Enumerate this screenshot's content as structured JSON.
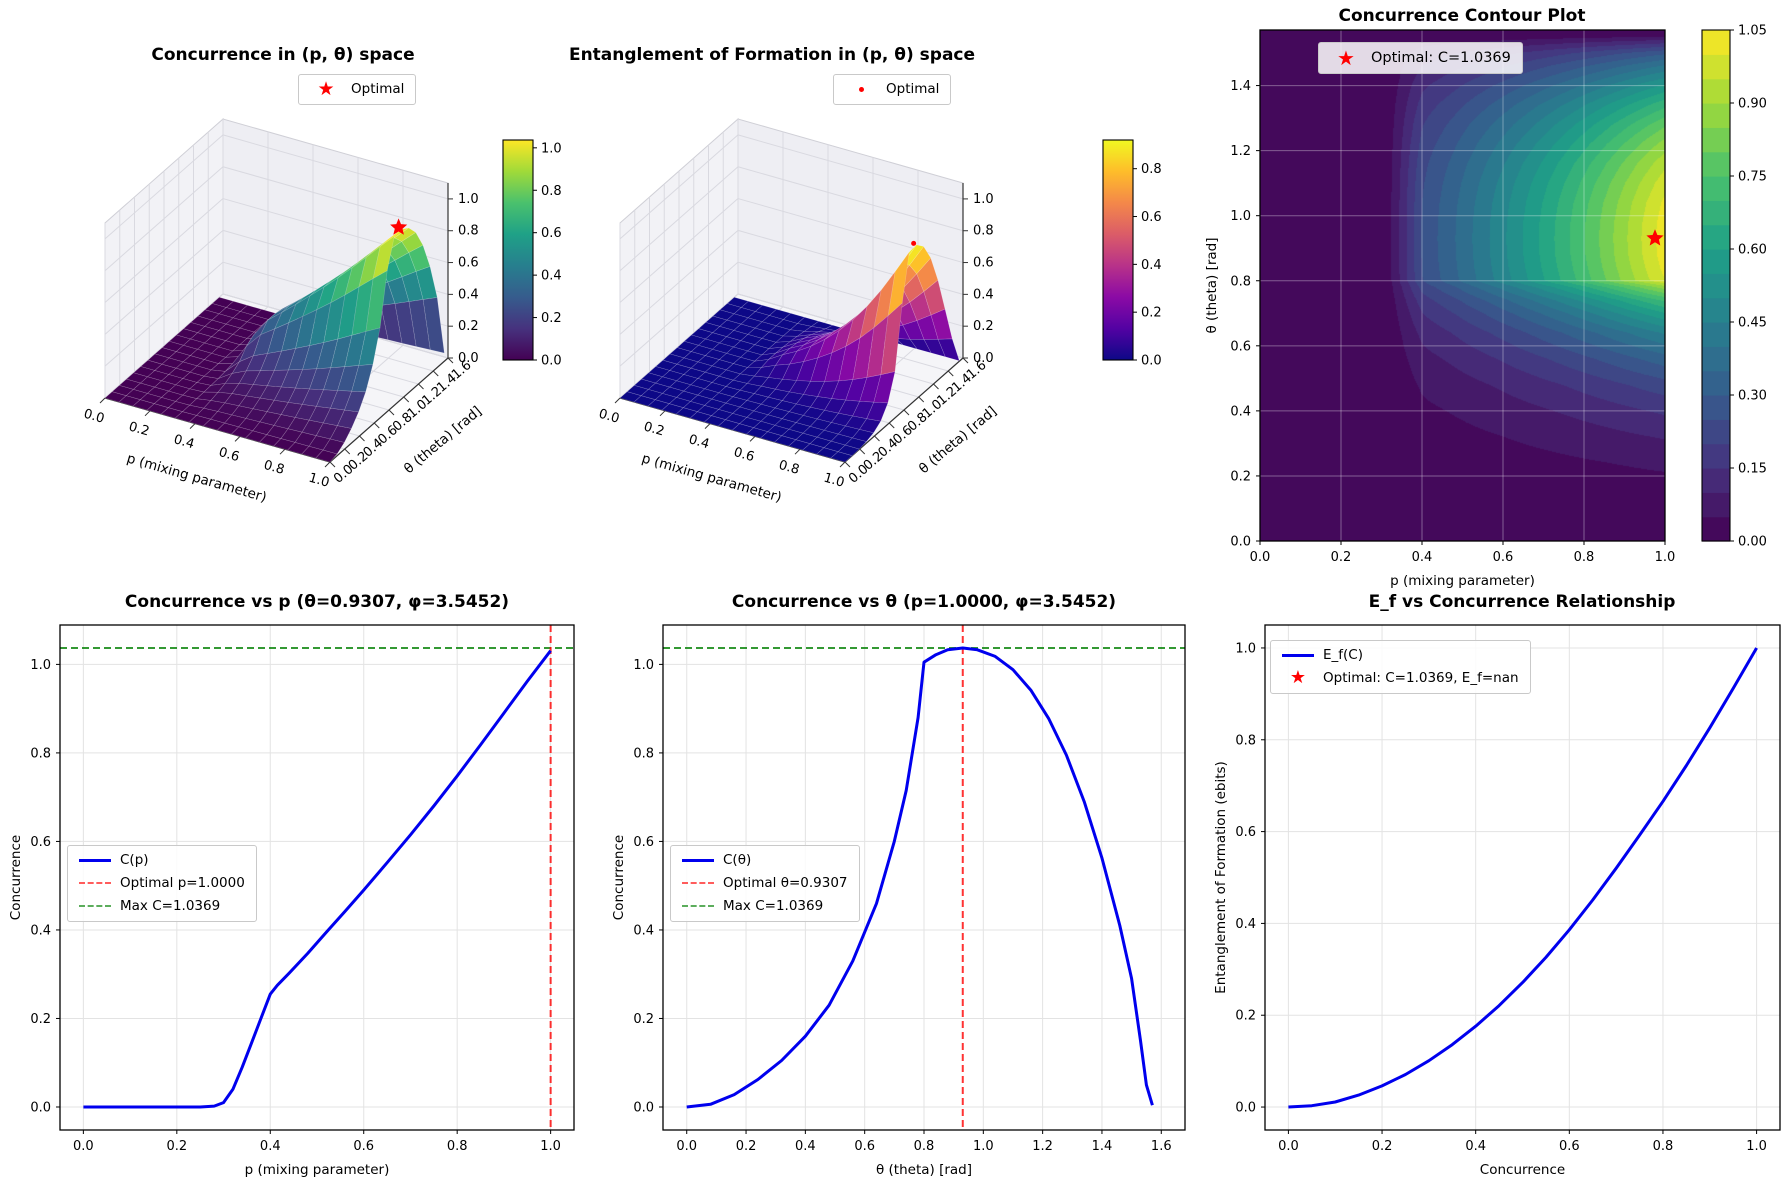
{
  "colormaps": {
    "viridis": [
      "#440154",
      "#46327e",
      "#365c8d",
      "#277f8e",
      "#1fa187",
      "#4ac16d",
      "#a0da39",
      "#fde725"
    ],
    "plasma": [
      "#0d0887",
      "#5302a3",
      "#8b0aa5",
      "#b83289",
      "#db5c68",
      "#f48849",
      "#febd2a",
      "#f0f921"
    ]
  },
  "accent_colors": {
    "line_blue": "#0000ee",
    "optimal_red": "#ff0000",
    "max_green": "#008000",
    "star_red": "#ff0000"
  },
  "chart_data": [
    {
      "id": "surface-concurrence",
      "type": "surface3d",
      "title": "Concurrence in (p, θ) space",
      "xlabel": "p (mixing parameter)",
      "ylabel": "θ (theta) [rad]",
      "xticks": [
        "0.0",
        "0.2",
        "0.4",
        "0.6",
        "0.8",
        "1.0"
      ],
      "yticks": [
        "0.0",
        "0.2",
        "0.4",
        "0.6",
        "0.8",
        "1.0",
        "1.2",
        "1.4",
        "1.6"
      ],
      "zticks": [
        "0.0",
        "0.2",
        "0.4",
        "0.6",
        "0.8",
        "1.0"
      ],
      "xlim": [
        0,
        1
      ],
      "ylim": [
        0,
        1.6
      ],
      "zlim": [
        0,
        1.1
      ],
      "colormap": "viridis",
      "colorbar_ticks": [
        "0.0",
        "0.2",
        "0.4",
        "0.6",
        "0.8",
        "1.0"
      ],
      "colorbar_vmax": 1.0369,
      "legend": [
        {
          "label": "Optimal",
          "marker": "star",
          "color": "#ff0000"
        }
      ],
      "optimal_point": {
        "p": 1.0,
        "theta": 0.9307,
        "value": 1.0369
      },
      "surface_from": {
        "p_curve": 3,
        "theta_curve": 4,
        "normalize": 1.0369
      }
    },
    {
      "id": "surface-ef",
      "type": "surface3d",
      "title": "Entanglement of Formation in (p, θ) space",
      "xlabel": "p (mixing parameter)",
      "ylabel": "θ (theta) [rad]",
      "xticks": [
        "0.0",
        "0.2",
        "0.4",
        "0.6",
        "0.8",
        "1.0"
      ],
      "yticks": [
        "0.0",
        "0.2",
        "0.4",
        "0.6",
        "0.8",
        "1.0",
        "1.2",
        "1.4",
        "1.6"
      ],
      "zticks": [
        "0.0",
        "0.2",
        "0.4",
        "0.6",
        "0.8",
        "1.0"
      ],
      "xlim": [
        0,
        1
      ],
      "ylim": [
        0,
        1.6
      ],
      "zlim": [
        0,
        1.1
      ],
      "colormap": "plasma",
      "colorbar_ticks": [
        "0.0",
        "0.2",
        "0.4",
        "0.6",
        "0.8"
      ],
      "colorbar_vmax": 0.92,
      "z_power": 1.9,
      "z_scale": 0.92,
      "legend": [
        {
          "label": "Optimal",
          "marker": "dot",
          "color": "#ff0000"
        }
      ],
      "optimal_point": {
        "p": 1.0,
        "theta": 0.9307
      },
      "surface_from": {
        "p_curve": 3,
        "theta_curve": 4,
        "normalize": 1.0369
      }
    },
    {
      "id": "contour-concurrence",
      "type": "contour",
      "title": "Concurrence Contour Plot",
      "xlabel": "p (mixing parameter)",
      "ylabel": "θ (theta) [rad]",
      "xticks": [
        "0.0",
        "0.2",
        "0.4",
        "0.6",
        "0.8",
        "1.0"
      ],
      "yticks": [
        "0.0",
        "0.2",
        "0.4",
        "0.6",
        "0.8",
        "1.0",
        "1.2",
        "1.4"
      ],
      "xlim": [
        0,
        1
      ],
      "ylim": [
        0,
        1.5708
      ],
      "levels_min": 0,
      "levels_max": 1.05,
      "levels_step": 0.05,
      "colormap": "viridis",
      "colorbar_ticks": [
        "0.00",
        "0.15",
        "0.30",
        "0.45",
        "0.60",
        "0.75",
        "0.90",
        "1.05"
      ],
      "legend": [
        {
          "label": "Optimal: C=1.0369",
          "marker": "star",
          "color": "#ff0000"
        }
      ],
      "optimal_point": {
        "p": 1.0,
        "theta": 0.9307
      },
      "surface_from": {
        "p_curve": 3,
        "theta_curve": 4,
        "normalize": 1.0369
      }
    },
    {
      "id": "c-vs-p",
      "type": "line",
      "title": "Concurrence vs p (θ=0.9307, φ=3.5452)",
      "xlabel": "p (mixing parameter)",
      "ylabel": "Concurrence",
      "xticks": [
        "0.0",
        "0.2",
        "0.4",
        "0.6",
        "0.8",
        "1.0"
      ],
      "yticks": [
        "0.0",
        "0.2",
        "0.4",
        "0.6",
        "0.8",
        "1.0"
      ],
      "xlim": [
        -0.05,
        1.05
      ],
      "ylim": [
        -0.052,
        1.089
      ],
      "series": [
        {
          "name": "C(p)",
          "color": "#0000ee",
          "x": [
            0,
            0.05,
            0.1,
            0.15,
            0.2,
            0.25,
            0.28,
            0.3,
            0.32,
            0.34,
            0.36,
            0.38,
            0.4,
            0.415,
            0.44,
            0.48,
            0.52,
            0.56,
            0.6,
            0.65,
            0.7,
            0.75,
            0.8,
            0.85,
            0.9,
            0.95,
            1.0
          ],
          "y": [
            0,
            0,
            0,
            0,
            0,
            0,
            0.002,
            0.01,
            0.04,
            0.09,
            0.145,
            0.2,
            0.255,
            0.275,
            0.302,
            0.347,
            0.395,
            0.442,
            0.49,
            0.552,
            0.615,
            0.68,
            0.748,
            0.818,
            0.89,
            0.962,
            1.031
          ]
        }
      ],
      "vline": {
        "x": 1.0,
        "color": "#ff0000",
        "label": "Optimal p=1.0000"
      },
      "hline": {
        "y": 1.0369,
        "color": "#008000",
        "label": "Max C=1.0369"
      },
      "legend": [
        {
          "label": "C(p)",
          "marker": "line",
          "color": "#0000ee"
        },
        {
          "label": "Optimal p=1.0000",
          "marker": "dash",
          "color": "#ff3333"
        },
        {
          "label": "Max C=1.0369",
          "marker": "dash",
          "color": "#339933"
        }
      ]
    },
    {
      "id": "c-vs-theta",
      "type": "line",
      "title": "Concurrence vs θ (p=1.0000, φ=3.5452)",
      "xlabel": "θ (theta) [rad]",
      "ylabel": "Concurrence",
      "xticks": [
        "0.0",
        "0.2",
        "0.4",
        "0.6",
        "0.8",
        "1.0",
        "1.2",
        "1.4",
        "1.6"
      ],
      "yticks": [
        "0.0",
        "0.2",
        "0.4",
        "0.6",
        "0.8",
        "1.0"
      ],
      "xlim": [
        -0.08,
        1.68
      ],
      "ylim": [
        -0.052,
        1.089
      ],
      "series": [
        {
          "name": "C(θ)",
          "color": "#0000ee",
          "x": [
            0,
            0.08,
            0.16,
            0.24,
            0.32,
            0.4,
            0.48,
            0.56,
            0.64,
            0.7,
            0.74,
            0.78,
            0.8,
            0.84,
            0.88,
            0.9307,
            0.98,
            1.04,
            1.1,
            1.16,
            1.22,
            1.28,
            1.34,
            1.4,
            1.46,
            1.5,
            1.53,
            1.55,
            1.57
          ],
          "y": [
            0,
            0.006,
            0.028,
            0.062,
            0.105,
            0.16,
            0.23,
            0.33,
            0.46,
            0.6,
            0.715,
            0.88,
            1.005,
            1.022,
            1.033,
            1.037,
            1.033,
            1.018,
            0.988,
            0.942,
            0.878,
            0.795,
            0.69,
            0.562,
            0.41,
            0.29,
            0.15,
            0.05,
            0.004
          ]
        }
      ],
      "vline": {
        "x": 0.9307,
        "color": "#ff0000",
        "label": "Optimal θ=0.9307"
      },
      "hline": {
        "y": 1.0369,
        "color": "#008000",
        "label": "Max C=1.0369"
      },
      "legend": [
        {
          "label": "C(θ)",
          "marker": "line",
          "color": "#0000ee"
        },
        {
          "label": "Optimal θ=0.9307",
          "marker": "dash",
          "color": "#ff3333"
        },
        {
          "label": "Max C=1.0369",
          "marker": "dash",
          "color": "#339933"
        }
      ]
    },
    {
      "id": "ef-vs-c",
      "type": "line",
      "title": "E_f vs Concurrence Relationship",
      "xlabel": "Concurrence",
      "ylabel": "Entanglement of Formation (ebits)",
      "xticks": [
        "0.0",
        "0.2",
        "0.4",
        "0.6",
        "0.8",
        "1.0"
      ],
      "yticks": [
        "0.0",
        "0.2",
        "0.4",
        "0.6",
        "0.8",
        "1.0"
      ],
      "xlim": [
        -0.05,
        1.05
      ],
      "ylim": [
        -0.05,
        1.05
      ],
      "series": [
        {
          "name": "E_f(C)",
          "color": "#0000ee",
          "x": [
            0,
            0.05,
            0.1,
            0.15,
            0.2,
            0.25,
            0.3,
            0.35,
            0.4,
            0.45,
            0.5,
            0.55,
            0.6,
            0.65,
            0.7,
            0.75,
            0.8,
            0.85,
            0.9,
            0.95,
            1.0
          ],
          "y": [
            0,
            0.003,
            0.011,
            0.026,
            0.046,
            0.071,
            0.101,
            0.136,
            0.176,
            0.221,
            0.271,
            0.326,
            0.386,
            0.451,
            0.52,
            0.592,
            0.666,
            0.744,
            0.826,
            0.912,
            1.0
          ]
        }
      ],
      "legend": [
        {
          "label": "E_f(C)",
          "marker": "line",
          "color": "#0000ee"
        },
        {
          "label": "Optimal: C=1.0369, E_f=nan",
          "marker": "star",
          "color": "#ff0000"
        }
      ]
    }
  ]
}
